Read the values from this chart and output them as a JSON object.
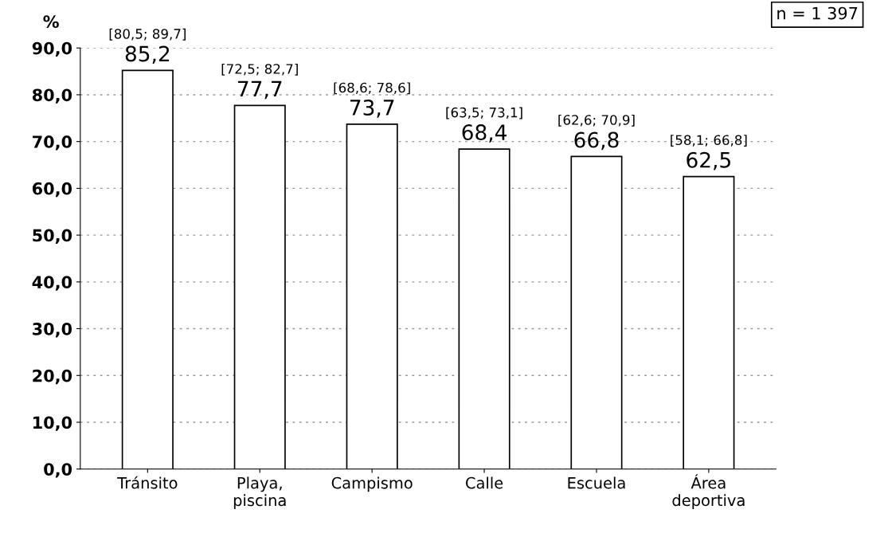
{
  "chart_data": {
    "type": "bar",
    "categories": [
      "Tránsito",
      "Playa,\npiscina",
      "Campismo",
      "Calle",
      "Escuela",
      "Área\ndeportiva"
    ],
    "values": [
      85.2,
      77.7,
      73.7,
      68.4,
      66.8,
      62.5
    ],
    "value_labels": [
      "85,2",
      "77,7",
      "73,7",
      "68,4",
      "66,8",
      "62,5"
    ],
    "color": "#ffffff",
    "ylabel": "%",
    "ylim": [
      0,
      90
    ],
    "yticks": [
      {
        "value": 0,
        "label": "0,0"
      },
      {
        "value": 10,
        "label": "10,0"
      },
      {
        "value": 20,
        "label": "20,0"
      },
      {
        "value": 30,
        "label": "30,0"
      },
      {
        "value": 40,
        "label": "40,0"
      },
      {
        "value": 50,
        "label": "50,0"
      },
      {
        "value": 60,
        "label": "60,0"
      },
      {
        "value": 70,
        "label": "70,0"
      },
      {
        "value": 80,
        "label": "80,0"
      },
      {
        "value": 90,
        "label": "90,0"
      }
    ],
    "grid": "y",
    "annotations": [
      {
        "text": "[80,5; 89,7]",
        "x": "Tránsito",
        "y": 85.2
      },
      {
        "text": "[72,5; 82,7]",
        "x": "Playa,\npiscina",
        "y": 77.7
      },
      {
        "text": "[68,6; 78,6]",
        "x": "Campismo",
        "y": 73.7
      },
      {
        "text": "[63,5; 73,1]",
        "x": "Calle",
        "y": 68.4
      },
      {
        "text": "[62,6; 70,9]",
        "x": "Escuela",
        "y": 66.8
      },
      {
        "text": "[58,1; 66,8]",
        "x": "Área\ndeportiva",
        "y": 62.5
      },
      "n = 1 397"
    ]
  }
}
